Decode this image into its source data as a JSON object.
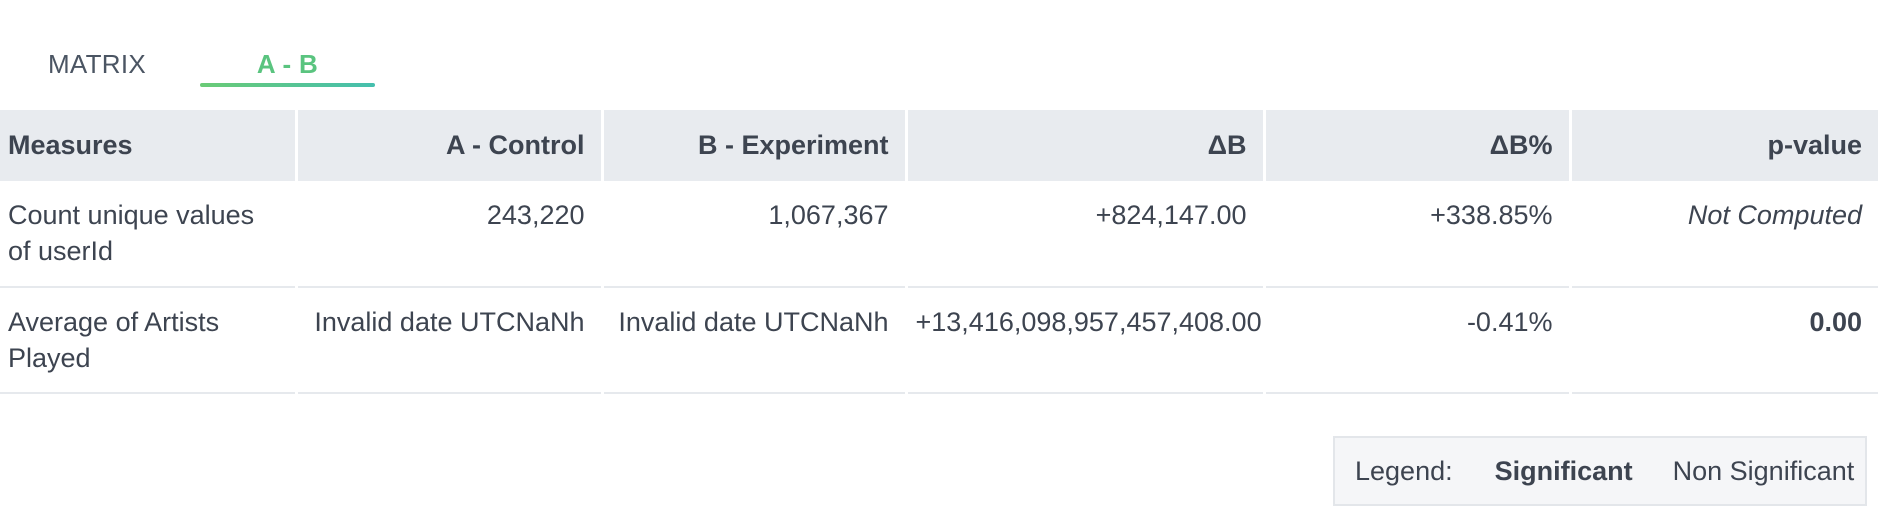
{
  "tabs": [
    {
      "label": "MATRIX",
      "active": false
    },
    {
      "label": "A - B",
      "active": true
    }
  ],
  "colors": {
    "active_tab": "#5ac47f",
    "underline_start": "#6acb76",
    "underline_end": "#45bfae",
    "header_bg": "#e8ebef",
    "text": "#3d4450"
  },
  "table": {
    "headers": [
      "Measures",
      "A - Control",
      "B - Experiment",
      "ΔB",
      "ΔB%",
      "p-value"
    ],
    "rows": [
      {
        "measure": "Count unique values of userId",
        "a_control": "243,220",
        "b_experiment": "1,067,367",
        "delta_b": "+824,147.00",
        "delta_b_pct": "+338.85%",
        "p_value": "Not Computed"
      },
      {
        "measure": "Average of Artists Played",
        "a_control": "Invalid date UTCNaNh",
        "b_experiment": "Invalid date UTCNaNh",
        "delta_b": "+13,416,098,957,457,408.00",
        "delta_b_pct": "-0.41%",
        "p_value": "0.00"
      }
    ]
  },
  "legend": {
    "label": "Legend:",
    "significant": "Significant",
    "non_significant": "Non Significant"
  }
}
